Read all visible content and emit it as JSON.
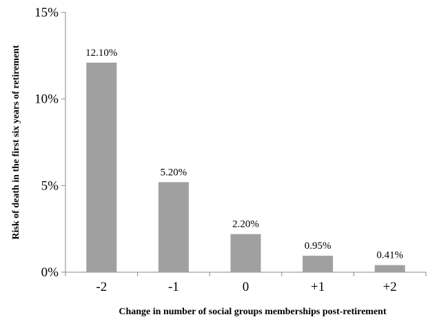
{
  "chart_data": {
    "type": "bar",
    "categories": [
      "-2",
      "-1",
      "0",
      "+1",
      "+2"
    ],
    "values": [
      12.1,
      5.2,
      2.2,
      0.95,
      0.41
    ],
    "data_labels": [
      "12.10%",
      "5.20%",
      "2.20%",
      "0.95%",
      "0.41%"
    ],
    "xlabel": "Change in number of social groups memberships post-retirement",
    "ylabel": "Risk of death in the first six years of retirement",
    "ylim": [
      0,
      15
    ],
    "yticks": [
      0,
      5,
      10,
      15
    ],
    "ytick_labels": [
      "0%",
      "5%",
      "10%",
      "15%"
    ],
    "grid": false,
    "legend": "none",
    "bar_color": "#a0a0a0",
    "axis_color": "#888888"
  }
}
